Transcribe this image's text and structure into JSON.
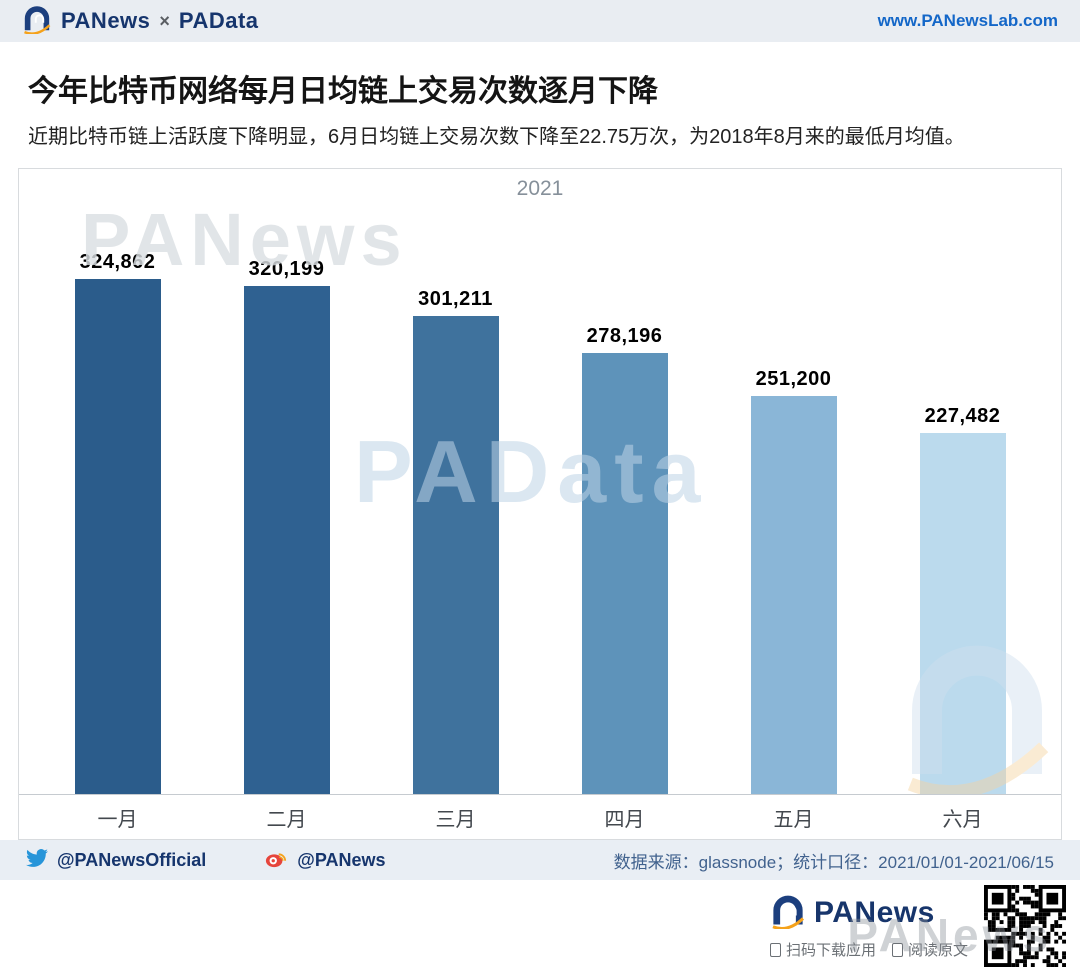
{
  "header": {
    "brand_left": "PANews",
    "separator": "×",
    "brand_right": "PAData",
    "website": "www.PANewsLab.com"
  },
  "article": {
    "title": "今年比特币网络每月日均链上交易次数逐月下降",
    "subtitle": "近期比特币链上活跃度下降明显，6月日均链上交易次数下降至22.75万次，为2018年8月来的最低月均值。"
  },
  "chart_data": {
    "type": "bar",
    "title": "2021",
    "xlabel": "",
    "ylabel": "",
    "categories": [
      "一月",
      "二月",
      "三月",
      "四月",
      "五月",
      "六月"
    ],
    "values": [
      324862,
      320199,
      301211,
      278196,
      251200,
      227482
    ],
    "value_labels": [
      "324,862",
      "320,199",
      "301,211",
      "278,196",
      "251,200",
      "227,482"
    ],
    "ylim": [
      0,
      340000
    ],
    "grid": false,
    "legend": "none",
    "bar_colors": [
      "#2b5c8b",
      "#2f6191",
      "#3f729d",
      "#5e93ba",
      "#8ab6d7",
      "#bbdaed"
    ]
  },
  "watermarks": {
    "chart_upper": "PANews",
    "chart_center": "PAData",
    "bottom": "PANews"
  },
  "footer_bar": {
    "twitter_handle": "@PANewsOfficial",
    "weibo_handle": "@PANews",
    "source_text": "数据来源：glassnode；统计口径：2021/01/01-2021/06/15"
  },
  "bottom": {
    "brand": "PANews",
    "caption_download": "扫码下载应用",
    "caption_read": "阅读原文"
  },
  "colors": {
    "accent_navy": "#16356d",
    "accent_orange": "#f5a21b",
    "link_blue": "#1467c8",
    "header_bg": "#e9edf2"
  }
}
